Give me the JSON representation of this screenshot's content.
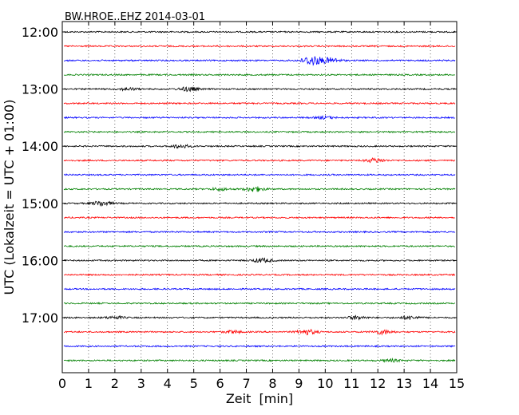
{
  "chart_data": {
    "type": "line",
    "title": "BW.HROE..EHZ 2014-03-01",
    "xlabel": "Zeit  [min]",
    "ylabel": "UTC (Lokalzeit = UTC + 01:00)",
    "xlim": [
      0,
      15
    ],
    "x_ticks": [
      "0",
      "1",
      "2",
      "3",
      "4",
      "5",
      "6",
      "7",
      "8",
      "9",
      "10",
      "11",
      "12",
      "13",
      "14",
      "15"
    ],
    "grid": "vertical dotted",
    "trace_colors": [
      "#000000",
      "#ff0000",
      "#0000ff",
      "#008000"
    ],
    "hour_labels": [
      "12:00",
      "13:00",
      "14:00",
      "15:00",
      "16:00",
      "17:00"
    ],
    "series": [
      {
        "start": "12:00",
        "color": "#000000",
        "bursts": []
      },
      {
        "start": "12:15",
        "color": "#ff0000",
        "bursts": []
      },
      {
        "start": "12:30",
        "color": "#0000ff",
        "bursts": [
          {
            "x": 9.5,
            "amp": 6
          },
          {
            "x": 10.2,
            "amp": 3
          }
        ]
      },
      {
        "start": "12:45",
        "color": "#008000",
        "bursts": []
      },
      {
        "start": "13:00",
        "color": "#000000",
        "bursts": [
          {
            "x": 4.8,
            "amp": 2.5
          },
          {
            "x": 2.5,
            "amp": 1.5
          }
        ]
      },
      {
        "start": "13:15",
        "color": "#ff0000",
        "bursts": []
      },
      {
        "start": "13:30",
        "color": "#0000ff",
        "bursts": [
          {
            "x": 10.0,
            "amp": 1.5
          }
        ]
      },
      {
        "start": "13:45",
        "color": "#008000",
        "bursts": []
      },
      {
        "start": "14:00",
        "color": "#000000",
        "bursts": [
          {
            "x": 4.5,
            "amp": 2
          }
        ]
      },
      {
        "start": "14:15",
        "color": "#ff0000",
        "bursts": [
          {
            "x": 11.9,
            "amp": 2.5
          }
        ]
      },
      {
        "start": "14:30",
        "color": "#0000ff",
        "bursts": []
      },
      {
        "start": "14:45",
        "color": "#008000",
        "bursts": [
          {
            "x": 7.3,
            "amp": 3
          },
          {
            "x": 6.0,
            "amp": 1.5
          }
        ]
      },
      {
        "start": "15:00",
        "color": "#000000",
        "bursts": [
          {
            "x": 1.5,
            "amp": 3
          }
        ]
      },
      {
        "start": "15:15",
        "color": "#ff0000",
        "bursts": []
      },
      {
        "start": "15:30",
        "color": "#0000ff",
        "bursts": []
      },
      {
        "start": "15:45",
        "color": "#008000",
        "bursts": []
      },
      {
        "start": "16:00",
        "color": "#000000",
        "bursts": [
          {
            "x": 7.6,
            "amp": 2.5
          }
        ]
      },
      {
        "start": "16:15",
        "color": "#ff0000",
        "bursts": []
      },
      {
        "start": "16:30",
        "color": "#0000ff",
        "bursts": []
      },
      {
        "start": "16:45",
        "color": "#008000",
        "bursts": []
      },
      {
        "start": "17:00",
        "color": "#000000",
        "bursts": [
          {
            "x": 11.2,
            "amp": 2
          },
          {
            "x": 13.2,
            "amp": 2
          },
          {
            "x": 2.0,
            "amp": 1.5
          }
        ]
      },
      {
        "start": "17:15",
        "color": "#ff0000",
        "bursts": [
          {
            "x": 9.3,
            "amp": 3
          },
          {
            "x": 12.2,
            "amp": 2.5
          },
          {
            "x": 6.5,
            "amp": 1.5
          }
        ]
      },
      {
        "start": "17:30",
        "color": "#0000ff",
        "bursts": []
      },
      {
        "start": "17:45",
        "color": "#008000",
        "bursts": [
          {
            "x": 12.5,
            "amp": 1.5
          }
        ]
      }
    ]
  }
}
